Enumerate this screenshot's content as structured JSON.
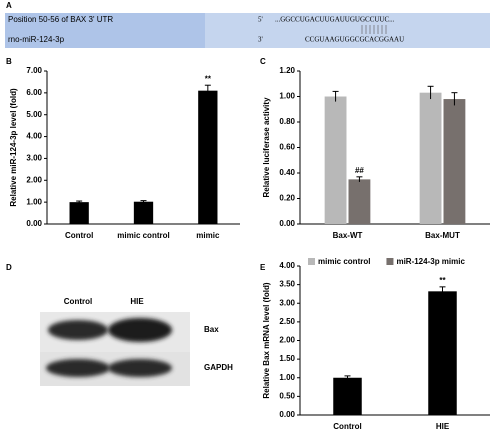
{
  "panel_a": {
    "letter": "A",
    "label_top": "Position 50-56 of BAX 3' UTR",
    "label_bottom": "rno-miR-124-3p",
    "prime_top": "5'",
    "seq_top": "...GGCCUGACUUGAUUGUGCCUUC...",
    "prime_bottom": "3'",
    "seq_bottom": "CCGUAAGUGGCGCACGGAAU"
  },
  "panel_d": {
    "letter": "D",
    "lanes": [
      "Control",
      "HIE"
    ],
    "bands": [
      "Bax",
      "GAPDH"
    ]
  },
  "chart_data": [
    {
      "type": "bar",
      "panel": "B",
      "ylabel": "Relative miR-124-3p level (fold)",
      "categories": [
        "Control",
        "mimic control",
        "mimic"
      ],
      "values": [
        1.0,
        1.02,
        6.1
      ],
      "errors": [
        0.05,
        0.05,
        0.25
      ],
      "annotations": [
        null,
        null,
        "**"
      ],
      "color": "#000000",
      "ylim": [
        0,
        7
      ],
      "yticks": [
        {
          "value": 0,
          "label": "0.00"
        },
        {
          "value": 1,
          "label": "1.00"
        },
        {
          "value": 2,
          "label": "2.00"
        },
        {
          "value": 3,
          "label": "3.00"
        },
        {
          "value": 4,
          "label": "4.00"
        },
        {
          "value": 5,
          "label": "5.00"
        },
        {
          "value": 6,
          "label": "6.00"
        },
        {
          "value": 7,
          "label": "7.00"
        }
      ]
    },
    {
      "type": "bar",
      "panel": "C",
      "ylabel": "Relative luciferase activity",
      "categories": [
        "Bax-WT",
        "Bax-MUT"
      ],
      "series": [
        {
          "name": "mimic control",
          "color": "#b8b8b8",
          "values": [
            1.0,
            1.03
          ],
          "errors": [
            0.04,
            0.05
          ]
        },
        {
          "name": "miR-124-3p mimic",
          "color": "#77706d",
          "values": [
            0.35,
            0.98
          ],
          "errors": [
            0.02,
            0.05
          ],
          "annotations": [
            "##",
            null
          ]
        }
      ],
      "ylim": [
        0,
        1.2
      ],
      "yticks": [
        {
          "value": 0,
          "label": "0.00"
        },
        {
          "value": 0.2,
          "label": "0.20"
        },
        {
          "value": 0.4,
          "label": "0.40"
        },
        {
          "value": 0.6,
          "label": "0.60"
        },
        {
          "value": 0.8,
          "label": "0.80"
        },
        {
          "value": 1,
          "label": "1.00"
        },
        {
          "value": 1.2,
          "label": "1.20"
        }
      ],
      "legend": "bottom"
    },
    {
      "type": "bar",
      "panel": "E",
      "ylabel": "Relative Bax mRNA level (fold)",
      "categories": [
        "Control",
        "HIE"
      ],
      "values": [
        1.0,
        3.32
      ],
      "errors": [
        0.05,
        0.12
      ],
      "annotations": [
        null,
        "**"
      ],
      "color": "#000000",
      "ylim": [
        0,
        4
      ],
      "yticks": [
        {
          "value": 0,
          "label": "0.00"
        },
        {
          "value": 0.5,
          "label": "0.50"
        },
        {
          "value": 1,
          "label": "1.00"
        },
        {
          "value": 1.5,
          "label": "1.50"
        },
        {
          "value": 2,
          "label": "2.00"
        },
        {
          "value": 2.5,
          "label": "2.50"
        },
        {
          "value": 3,
          "label": "3.00"
        },
        {
          "value": 3.5,
          "label": "3.50"
        },
        {
          "value": 4,
          "label": "4.00"
        }
      ]
    }
  ]
}
